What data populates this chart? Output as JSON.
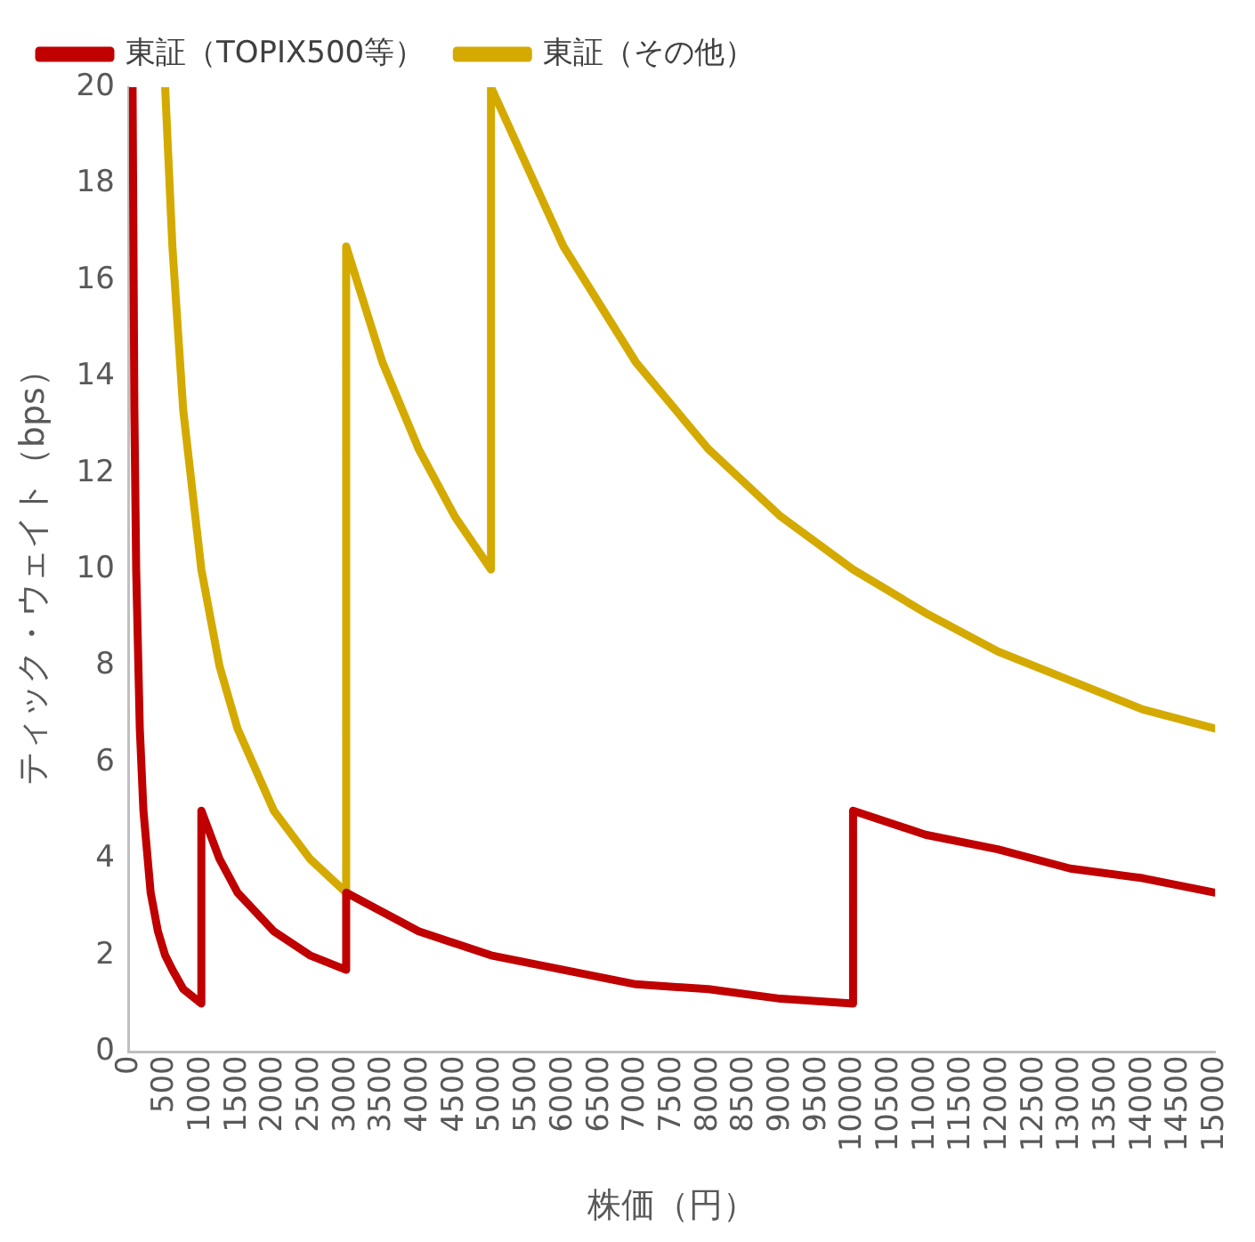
{
  "chart_data": {
    "type": "line",
    "xlabel": "株価（円）",
    "ylabel": "ティック・ウェイト（bps）",
    "xlim": [
      0,
      15000
    ],
    "xticks": [
      0,
      500,
      1000,
      1500,
      2000,
      2500,
      3000,
      3500,
      4000,
      4500,
      5000,
      5500,
      6000,
      6500,
      7000,
      7500,
      8000,
      8500,
      9000,
      9500,
      10000,
      10500,
      11000,
      11500,
      12000,
      12500,
      13000,
      13500,
      14000,
      14500,
      15000
    ],
    "ylim": [
      0,
      20
    ],
    "yticks": [
      0,
      2,
      4,
      6,
      8,
      10,
      12,
      14,
      16,
      18,
      20
    ],
    "grid": false,
    "legend": "top left",
    "marker": "none",
    "line_style": "solid",
    "series": [
      {
        "name": "東証（TOPIX500等）",
        "color": "#c00000",
        "x": [
          50,
          75,
          100,
          150,
          200,
          300,
          400,
          500,
          600,
          750,
          1000,
          1000,
          1250,
          1500,
          2000,
          2500,
          3000,
          3000,
          3500,
          4000,
          5000,
          6000,
          7000,
          8000,
          9000,
          10000,
          10000,
          11000,
          12000,
          13000,
          14000,
          15000
        ],
        "values": [
          20,
          13.3,
          10,
          6.7,
          5,
          3.3,
          2.5,
          2,
          1.7,
          1.3,
          1,
          5,
          4,
          3.3,
          2.5,
          2,
          1.7,
          3.3,
          2.9,
          2.5,
          2,
          1.7,
          1.4,
          1.3,
          1.1,
          1,
          5,
          4.5,
          4.2,
          3.8,
          3.6,
          3.3
        ]
      },
      {
        "name": "東証（その他）",
        "color": "#d4aa00",
        "x": [
          500,
          600,
          750,
          1000,
          1250,
          1500,
          2000,
          2500,
          3000,
          3000,
          3500,
          4000,
          4500,
          5000,
          5000,
          6000,
          7000,
          8000,
          9000,
          10000,
          11000,
          12000,
          13000,
          14000,
          15000
        ],
        "values": [
          20,
          16.7,
          13.3,
          10,
          8,
          6.7,
          5,
          4,
          3.3,
          16.7,
          14.3,
          12.5,
          11.1,
          10,
          20,
          16.7,
          14.3,
          12.5,
          11.1,
          10,
          9.1,
          8.3,
          7.7,
          7.1,
          6.7
        ]
      }
    ]
  }
}
